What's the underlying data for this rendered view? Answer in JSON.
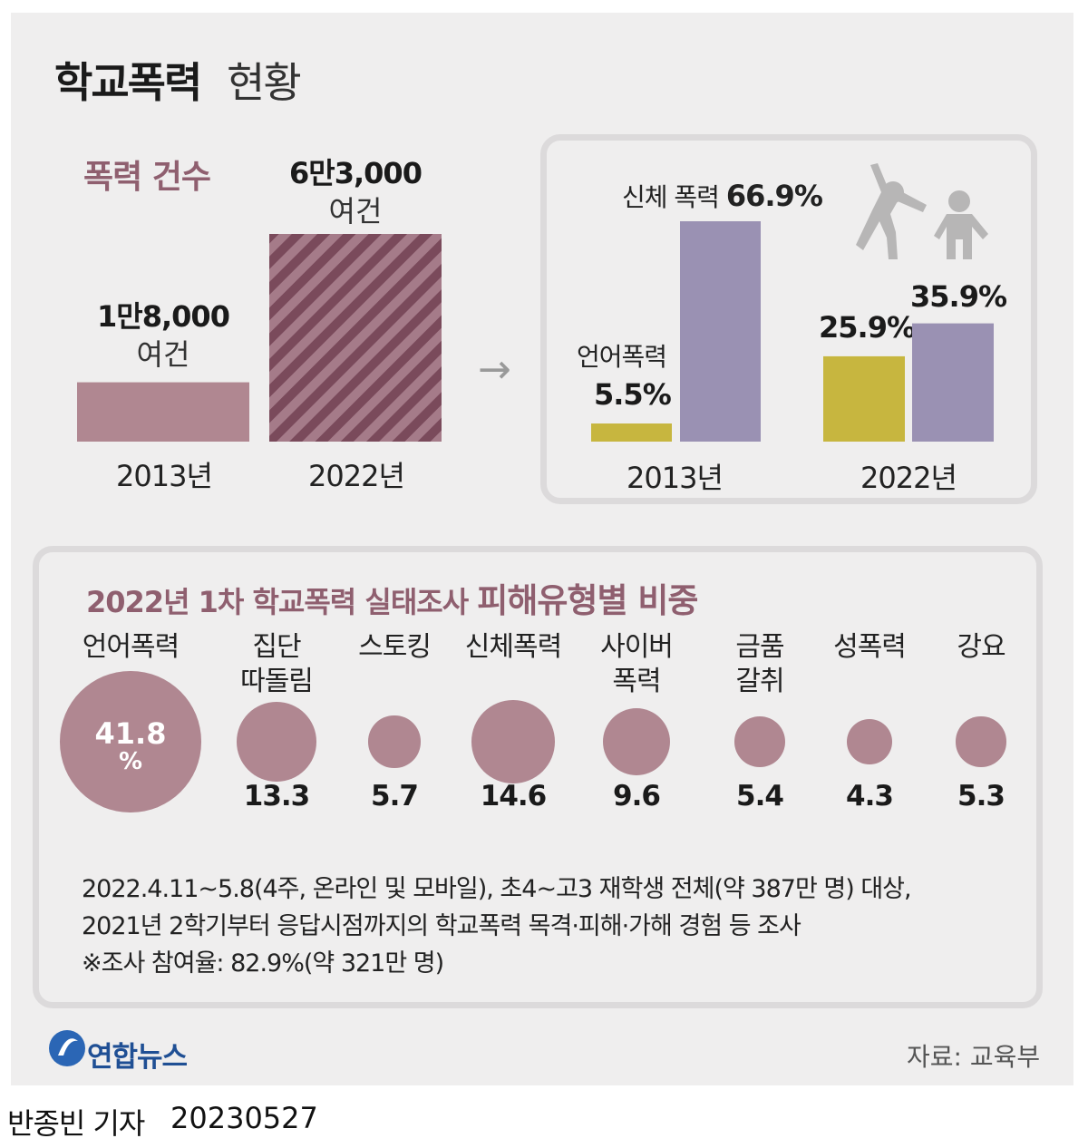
{
  "title": {
    "bold": "학교폭력",
    "light": "현황"
  },
  "count_section": {
    "label": "폭력 건수",
    "bars": [
      {
        "year": "2013년",
        "value_text": "1만8,000",
        "unit": "여건",
        "value": 18000,
        "color": "#b08791"
      },
      {
        "year": "2022년",
        "value_text": "6만3,000",
        "unit": "여건",
        "value": 63000,
        "color": "#8f5f6f"
      }
    ]
  },
  "arrow": "→",
  "type_section": {
    "labels": {
      "physical_prefix": "신체 폭력",
      "physical_value": "66.9%",
      "verbal_prefix": "언어폭력",
      "verbal_value": "5.5%",
      "v2022_verbal": "25.9%",
      "v2022_physical": "35.9%"
    },
    "years": [
      "2013년",
      "2022년"
    ],
    "colors": {
      "verbal": "#c7b63f",
      "physical": "#9a91b3"
    }
  },
  "breakdown": {
    "title_part1": "2022년 1차 학교폭력 실태조사",
    "title_part2": "피해유형별 비중",
    "unit": "%",
    "items": [
      {
        "label1": "언어폭력",
        "label2": "",
        "value": "41.8"
      },
      {
        "label1": "집단",
        "label2": "따돌림",
        "value": "13.3"
      },
      {
        "label1": "스토킹",
        "label2": "",
        "value": "5.7"
      },
      {
        "label1": "신체폭력",
        "label2": "",
        "value": "14.6"
      },
      {
        "label1": "사이버",
        "label2": "폭력",
        "value": "9.6"
      },
      {
        "label1": "금품",
        "label2": "갈취",
        "value": "5.4"
      },
      {
        "label1": "성폭력",
        "label2": "",
        "value": "4.3"
      },
      {
        "label1": "강요",
        "label2": "",
        "value": "5.3"
      }
    ]
  },
  "notes": [
    "2022.4.11~5.8(4주, 온라인 및 모바일), 초4~고3 재학생 전체(약 387만 명) 대상,",
    "2021년 2학기부터 응답시점까지의 학교폭력 목격·피해·가해 경험 등 조사",
    "※조사 참여율: 82.9%(약 321만 명)"
  ],
  "source": "자료: 교육부",
  "logo": "연합뉴스",
  "byline": {
    "name": "반종빈 기자",
    "date": "20230527"
  },
  "chart_data": [
    {
      "type": "bar",
      "title": "폭력 건수",
      "categories": [
        "2013년",
        "2022년"
      ],
      "values": [
        18000,
        63000
      ],
      "value_labels": [
        "1만8,000 여건",
        "6만3,000 여건"
      ]
    },
    {
      "type": "bar",
      "categories": [
        "2013년",
        "2022년"
      ],
      "series": [
        {
          "name": "언어폭력",
          "values": [
            5.5,
            25.9
          ]
        },
        {
          "name": "신체 폭력",
          "values": [
            66.9,
            35.9
          ]
        }
      ]
    },
    {
      "type": "bar",
      "title": "2022년 1차 학교폭력 실태조사 피해유형별 비중",
      "categories": [
        "언어폭력",
        "집단 따돌림",
        "스토킹",
        "신체폭력",
        "사이버 폭력",
        "금품 갈취",
        "성폭력",
        "강요"
      ],
      "values": [
        41.8,
        13.3,
        5.7,
        14.6,
        9.6,
        5.4,
        4.3,
        5.3
      ]
    }
  ]
}
